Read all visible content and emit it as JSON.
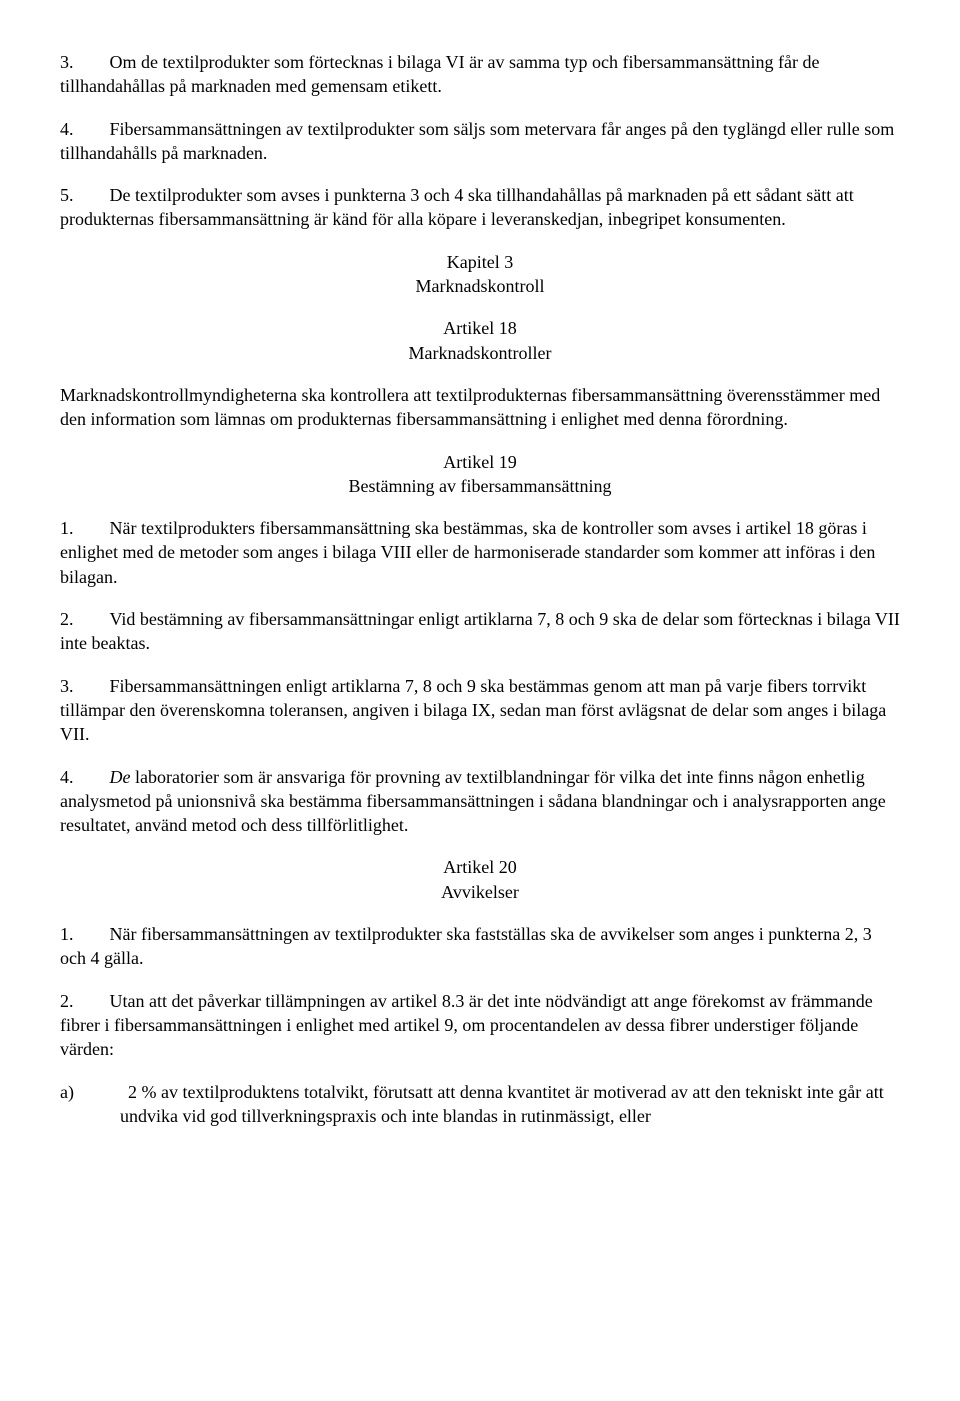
{
  "p1": "3.  Om de textilprodukter som förtecknas i bilaga VI är av samma typ och fibersammansättning får de tillhandahållas på marknaden med gemensam etikett.",
  "p2": "4.  Fibersammansättningen av textilprodukter som säljs som metervara får anges på den tyglängd eller rulle som tillhandahålls på marknaden.",
  "p3": "5.  De textilprodukter som avses i punkterna 3 och 4 ska tillhandahållas på marknaden på ett sådant sätt att produkternas fibersammansättning är känd för alla köpare i leveranskedjan, inbegripet konsumenten.",
  "chapter3": "Kapitel 3",
  "chapter3_title": "Marknadskontroll",
  "art18": "Artikel 18",
  "art18_title": "Marknadskontroller",
  "p4": "Marknadskontrollmyndigheterna ska kontrollera att textilprodukternas fibersammansättning överensstämmer med den information som lämnas om produkternas fibersammansättning i enlighet med denna förordning.",
  "art19": "Artikel 19",
  "art19_title": "Bestämning av fibersammansättning",
  "p5": "1.  När textilprodukters fibersammansättning ska bestämmas, ska de kontroller som avses i artikel 18 göras i enlighet med de metoder som anges i bilaga VIII eller de harmoniserade standarder som kommer att införas i den bilagan.",
  "p6": "2.  Vid bestämning av fibersammansättningar enligt artiklarna 7, 8 och 9 ska de delar som förtecknas i bilaga VII inte beaktas.",
  "p7": "3.  Fibersammansättningen enligt artiklarna 7, 8 och 9 ska bestämmas genom att man på varje fibers torrvikt tillämpar den överenskomna toleransen, angiven i bilaga IX, sedan man först avlägsnat de delar som anges i bilaga VII.",
  "p8_prefix": "4.  ",
  "p8_italic": "De",
  "p8_rest": " laboratorier som är ansvariga för provning av textilblandningar för vilka det inte finns någon enhetlig analysmetod på unionsnivå ska bestämma fibersammansättningen i sådana blandningar och i analysrapporten ange resultatet, använd metod och dess tillförlitlighet.",
  "art20": "Artikel 20",
  "art20_title": "Avvikelser",
  "p9": "1.  När fibersammansättningen av textilprodukter ska fastställas ska de avvikelser som anges i punkterna 2, 3 och 4 gälla.",
  "p10": "2.  Utan att det påverkar tillämpningen av artikel 8.3 är det inte nödvändigt att ange förekomst av främmande fibrer i fibersammansättningen i enlighet med artikel 9, om procentandelen av dessa fibrer understiger följande värden:",
  "p11": "a)   2 % av textilproduktens totalvikt, förutsatt att denna kvantitet är motiverad av att den tekniskt inte går att undvika vid god tillverkningspraxis och inte blandas in rutinmässigt, eller"
}
